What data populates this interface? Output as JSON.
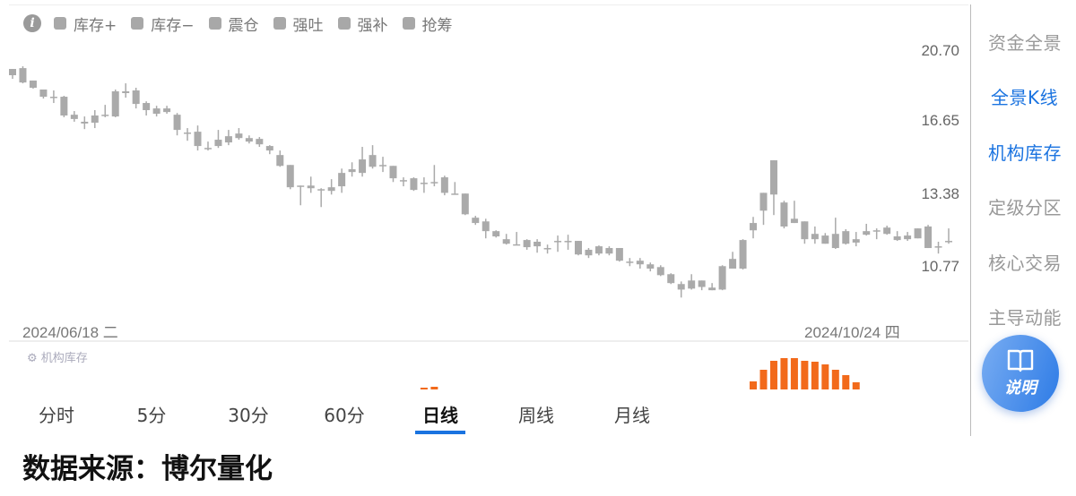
{
  "legend": {
    "info_icon": "info-icon",
    "items": [
      "库存+",
      "库存−",
      "震仓",
      "强吐",
      "强补",
      "抢筹"
    ],
    "swatch_color": "#a8a8a8"
  },
  "price_axis": [
    "20.70",
    "16.65",
    "13.38",
    "10.77"
  ],
  "dates": {
    "start": "2024/06/18 二",
    "end": "2024/10/24 四"
  },
  "indicator": {
    "label": "机构库存",
    "color": "#f26a1b"
  },
  "tabs": [
    {
      "label": "分时"
    },
    {
      "label": "5分"
    },
    {
      "label": "30分"
    },
    {
      "label": "60分"
    },
    {
      "label": "日线",
      "active": true
    },
    {
      "label": "周线"
    },
    {
      "label": "月线"
    }
  ],
  "footer": "数据来源：博尔量化",
  "sidebar": {
    "items": [
      {
        "label": "资金全景"
      },
      {
        "label": "全景K线",
        "active": true
      },
      {
        "label": "机构库存",
        "active": true
      },
      {
        "label": "定级分区"
      },
      {
        "label": "核心交易"
      },
      {
        "label": "主导动能"
      }
    ],
    "help_button": "说明"
  },
  "chart_data": {
    "type": "candlestick",
    "y_scale": "log",
    "yticks": [
      20.7,
      16.65,
      13.38,
      10.77
    ],
    "x_range": [
      "2024/06/18",
      "2024/10/24"
    ],
    "candle_color": "#aaaaaa",
    "candles": [
      [
        19.6,
        19.23,
        19.6,
        19.02
      ],
      [
        19.65,
        18.81,
        19.76,
        18.76
      ],
      [
        18.92,
        18.51,
        18.92,
        18.46
      ],
      [
        18.41,
        18.01,
        18.41,
        17.91
      ],
      [
        18.01,
        17.96,
        18.36,
        17.67
      ],
      [
        18.01,
        17.01,
        18.06,
        16.92
      ],
      [
        17.05,
        16.83,
        17.24,
        16.69
      ],
      [
        16.69,
        16.6,
        16.96,
        16.32
      ],
      [
        17.01,
        16.64,
        17.29,
        16.37
      ],
      [
        17.05,
        17.01,
        17.57,
        16.92
      ],
      [
        18.31,
        16.96,
        18.41,
        16.92
      ],
      [
        18.31,
        18.21,
        18.76,
        17.96
      ],
      [
        18.36,
        17.62,
        18.51,
        17.38
      ],
      [
        17.67,
        17.29,
        17.76,
        17.01
      ],
      [
        17.38,
        17.1,
        17.52,
        16.96
      ],
      [
        17.38,
        17.19,
        17.52,
        17.1
      ],
      [
        17.05,
        16.28,
        17.14,
        16.01
      ],
      [
        16.15,
        16.1,
        16.37,
        15.75
      ],
      [
        16.19,
        15.5,
        16.5,
        15.29
      ],
      [
        15.41,
        15.37,
        15.71,
        15.29
      ],
      [
        15.8,
        15.5,
        16.28,
        15.41
      ],
      [
        15.97,
        15.67,
        16.28,
        15.54
      ],
      [
        16.1,
        15.88,
        16.37,
        15.8
      ],
      [
        15.88,
        15.71,
        16.01,
        15.62
      ],
      [
        15.84,
        15.58,
        15.93,
        15.46
      ],
      [
        15.5,
        15.29,
        15.54,
        15.12
      ],
      [
        15.08,
        14.59,
        15.29,
        14.55
      ],
      [
        14.63,
        13.67,
        14.63,
        13.59
      ],
      [
        13.74,
        13.71,
        13.74,
        12.94
      ],
      [
        13.74,
        13.63,
        14.12,
        13.44
      ],
      [
        13.59,
        13.56,
        13.63,
        12.87
      ],
      [
        13.67,
        13.52,
        14.01,
        13.37
      ],
      [
        14.28,
        13.71,
        14.47,
        13.44
      ],
      [
        14.44,
        14.32,
        14.75,
        14.12
      ],
      [
        14.88,
        14.28,
        15.46,
        14.12
      ],
      [
        15.08,
        14.55,
        15.54,
        14.47
      ],
      [
        14.63,
        14.59,
        15.0,
        14.32
      ],
      [
        14.59,
        14.05,
        14.59,
        13.89
      ],
      [
        13.97,
        13.93,
        14.09,
        13.71
      ],
      [
        14.05,
        13.56,
        14.09,
        13.52
      ],
      [
        13.86,
        13.82,
        14.09,
        13.44
      ],
      [
        13.89,
        13.86,
        14.63,
        13.71
      ],
      [
        14.09,
        13.44,
        14.16,
        13.34
      ],
      [
        13.41,
        13.37,
        13.89,
        13.37
      ],
      [
        13.41,
        12.59,
        13.41,
        12.56
      ],
      [
        12.46,
        12.26,
        12.53,
        12.19
      ],
      [
        12.32,
        11.96,
        12.42,
        11.7
      ],
      [
        11.96,
        11.77,
        11.99,
        11.73
      ],
      [
        11.67,
        11.51,
        11.86,
        11.48
      ],
      [
        11.49,
        11.48,
        11.93,
        11.48
      ],
      [
        11.64,
        11.39,
        11.67,
        11.3
      ],
      [
        11.58,
        11.42,
        11.67,
        11.2
      ],
      [
        11.36,
        11.33,
        11.48,
        11.17
      ],
      [
        11.61,
        11.58,
        11.8,
        11.23
      ],
      [
        11.61,
        11.59,
        11.83,
        11.3
      ],
      [
        11.61,
        11.14,
        11.61,
        11.11
      ],
      [
        11.3,
        11.11,
        11.36,
        11.02
      ],
      [
        11.42,
        11.17,
        11.45,
        11.11
      ],
      [
        11.36,
        11.17,
        11.42,
        11.11
      ],
      [
        11.36,
        10.93,
        11.36,
        10.9
      ],
      [
        10.9,
        10.87,
        11.02,
        10.75
      ],
      [
        10.93,
        10.81,
        11.02,
        10.67
      ],
      [
        10.81,
        10.67,
        10.87,
        10.58
      ],
      [
        10.72,
        10.46,
        10.78,
        10.43
      ],
      [
        10.49,
        10.21,
        10.52,
        10.18
      ],
      [
        10.18,
        10.01,
        10.26,
        9.77
      ],
      [
        10.29,
        10.04,
        10.49,
        10.01
      ],
      [
        10.29,
        10.09,
        10.29,
        9.99
      ],
      [
        10.07,
        9.99,
        10.21,
        9.99
      ],
      [
        10.75,
        10.01,
        10.78,
        9.99
      ],
      [
        10.99,
        10.67,
        11.23,
        10.67
      ],
      [
        11.64,
        10.67,
        11.67,
        10.64
      ],
      [
        12.26,
        11.99,
        12.49,
        11.7
      ],
      [
        13.44,
        12.73,
        13.44,
        12.19
      ],
      [
        14.84,
        13.37,
        14.84,
        12.56
      ],
      [
        13.05,
        12.13,
        13.12,
        12.06
      ],
      [
        12.42,
        12.26,
        13.12,
        12.26
      ],
      [
        12.32,
        11.67,
        12.32,
        11.51
      ],
      [
        11.86,
        11.67,
        12.13,
        11.51
      ],
      [
        11.8,
        11.51,
        11.89,
        11.51
      ],
      [
        11.86,
        11.36,
        12.46,
        11.33
      ],
      [
        11.96,
        11.51,
        12.03,
        11.48
      ],
      [
        11.67,
        11.55,
        11.93,
        11.42
      ],
      [
        11.96,
        11.83,
        12.23,
        11.8
      ],
      [
        11.99,
        11.96,
        12.06,
        11.67
      ],
      [
        12.09,
        11.86,
        12.16,
        11.83
      ],
      [
        11.77,
        11.64,
        11.96,
        11.61
      ],
      [
        11.8,
        11.67,
        11.93,
        11.61
      ],
      [
        12.06,
        11.7,
        12.06,
        11.7
      ],
      [
        12.13,
        11.36,
        12.19,
        11.36
      ],
      [
        11.42,
        11.39,
        11.58,
        11.17
      ],
      [
        11.61,
        11.58,
        12.06,
        11.51
      ]
    ],
    "indicator_bars": {
      "40": 2,
      "41": 3,
      "72": 9,
      "73": 22,
      "74": 32,
      "75": 35,
      "76": 35,
      "77": 32,
      "78": 31,
      "79": 28,
      "80": 22,
      "81": 16,
      "82": 8
    }
  }
}
